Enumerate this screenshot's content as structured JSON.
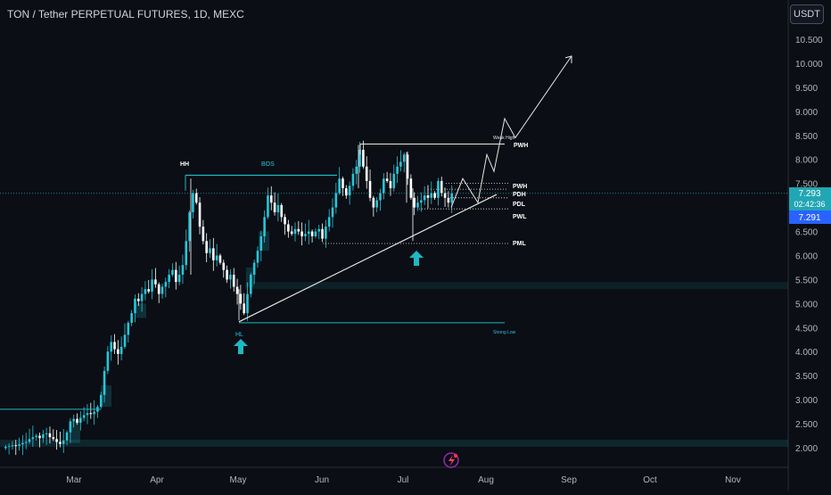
{
  "header": {
    "symbol_title": "TON / Tether PERPETUAL FUTURES, 1D, MEXC",
    "currency_button": "USDT"
  },
  "price_axis": {
    "ticks": [
      "10.500",
      "10.000",
      "9.500",
      "9.000",
      "8.500",
      "8.000",
      "7.500",
      "7.000",
      "6.500",
      "6.000",
      "5.500",
      "5.000",
      "4.500",
      "4.000",
      "3.500",
      "3.000",
      "2.500",
      "2.000"
    ],
    "last_price_label": "7.293",
    "countdown_label": "02:42:36",
    "second_price_label": "7.291"
  },
  "time_axis": {
    "ticks": [
      "Mar",
      "Apr",
      "May",
      "Jun",
      "Jul",
      "Aug",
      "Sep",
      "Oct",
      "Nov"
    ]
  },
  "annotations": {
    "hh": "HH",
    "bos": "BOS",
    "hl": "HL",
    "weak_high": "Weak High",
    "pwh_top": "PWH",
    "pwh": "PWH",
    "pdh": "PDH",
    "pdl": "PDL",
    "pwl": "PWL",
    "pml": "PML",
    "strong_low": "Strong Low"
  },
  "colors": {
    "background": "#0b0e14",
    "up_candle": "#26c6da",
    "down_candle": "#ffffff",
    "accent_teal": "#1fb8c4",
    "line_white": "#e6e6e6",
    "badge_teal": "#22a6b3",
    "badge_blue": "#2962ff"
  },
  "chart_data": {
    "type": "candlestick",
    "title": "TON / Tether PERPETUAL FUTURES, 1D, MEXC",
    "ylim": [
      1.9,
      10.9
    ],
    "y_ticks": [
      2.0,
      2.5,
      3.0,
      3.5,
      4.0,
      4.5,
      5.0,
      5.5,
      6.0,
      6.5,
      7.0,
      7.5,
      8.0,
      8.5,
      9.0,
      9.5,
      10.0,
      10.5
    ],
    "x_ticks": [
      "Mar",
      "Apr",
      "May",
      "Jun",
      "Jul",
      "Aug",
      "Sep",
      "Oct",
      "Nov"
    ],
    "close_series": [
      2.02,
      2.03,
      2.05,
      2.04,
      2.07,
      2.1,
      2.12,
      2.18,
      2.22,
      2.25,
      2.2,
      2.28,
      2.3,
      2.22,
      2.18,
      2.12,
      2.08,
      2.15,
      2.32,
      2.55,
      2.6,
      2.52,
      2.62,
      2.68,
      2.72,
      2.7,
      2.75,
      2.85,
      3.1,
      3.6,
      4.0,
      4.2,
      4.05,
      3.95,
      4.1,
      4.35,
      4.6,
      4.8,
      5.1,
      5.05,
      5.2,
      5.3,
      5.25,
      5.5,
      5.4,
      5.2,
      5.35,
      5.45,
      5.6,
      5.7,
      5.45,
      5.6,
      5.8,
      6.3,
      6.9,
      7.3,
      7.1,
      6.6,
      6.3,
      6.05,
      6.15,
      5.9,
      6.0,
      5.85,
      5.7,
      5.5,
      5.6,
      5.35,
      5.2,
      5.0,
      4.8,
      5.2,
      5.6,
      5.85,
      6.1,
      6.4,
      6.8,
      7.25,
      7.1,
      6.9,
      7.05,
      6.8,
      6.65,
      6.5,
      6.45,
      6.55,
      6.5,
      6.4,
      6.45,
      6.5,
      6.4,
      6.5,
      6.55,
      6.35,
      6.6,
      6.8,
      7.0,
      7.3,
      7.6,
      7.4,
      7.25,
      7.45,
      7.7,
      7.85,
      8.2,
      7.85,
      7.55,
      7.2,
      7.0,
      7.15,
      7.3,
      7.6,
      7.55,
      7.4,
      7.7,
      7.85,
      7.95,
      8.1,
      7.6,
      7.2,
      7.0,
      7.1,
      7.15,
      7.25,
      7.2,
      7.3,
      7.2,
      7.55,
      7.3,
      7.2,
      7.1,
      7.29
    ],
    "last_price": 7.293,
    "levels": [
      {
        "name": "PWH",
        "value": 7.5
      },
      {
        "name": "PDH",
        "value": 7.38
      },
      {
        "name": "PDL",
        "value": 7.2
      },
      {
        "name": "PWL",
        "value": 6.97
      },
      {
        "name": "PML",
        "value": 6.25
      },
      {
        "name": "Weak High",
        "value": 8.32
      },
      {
        "name": "HH",
        "value": 7.67
      },
      {
        "name": "Strong Low",
        "value": 4.6
      }
    ],
    "projection": [
      7.0,
      8.0,
      7.3,
      8.85,
      8.3,
      10.15
    ]
  }
}
